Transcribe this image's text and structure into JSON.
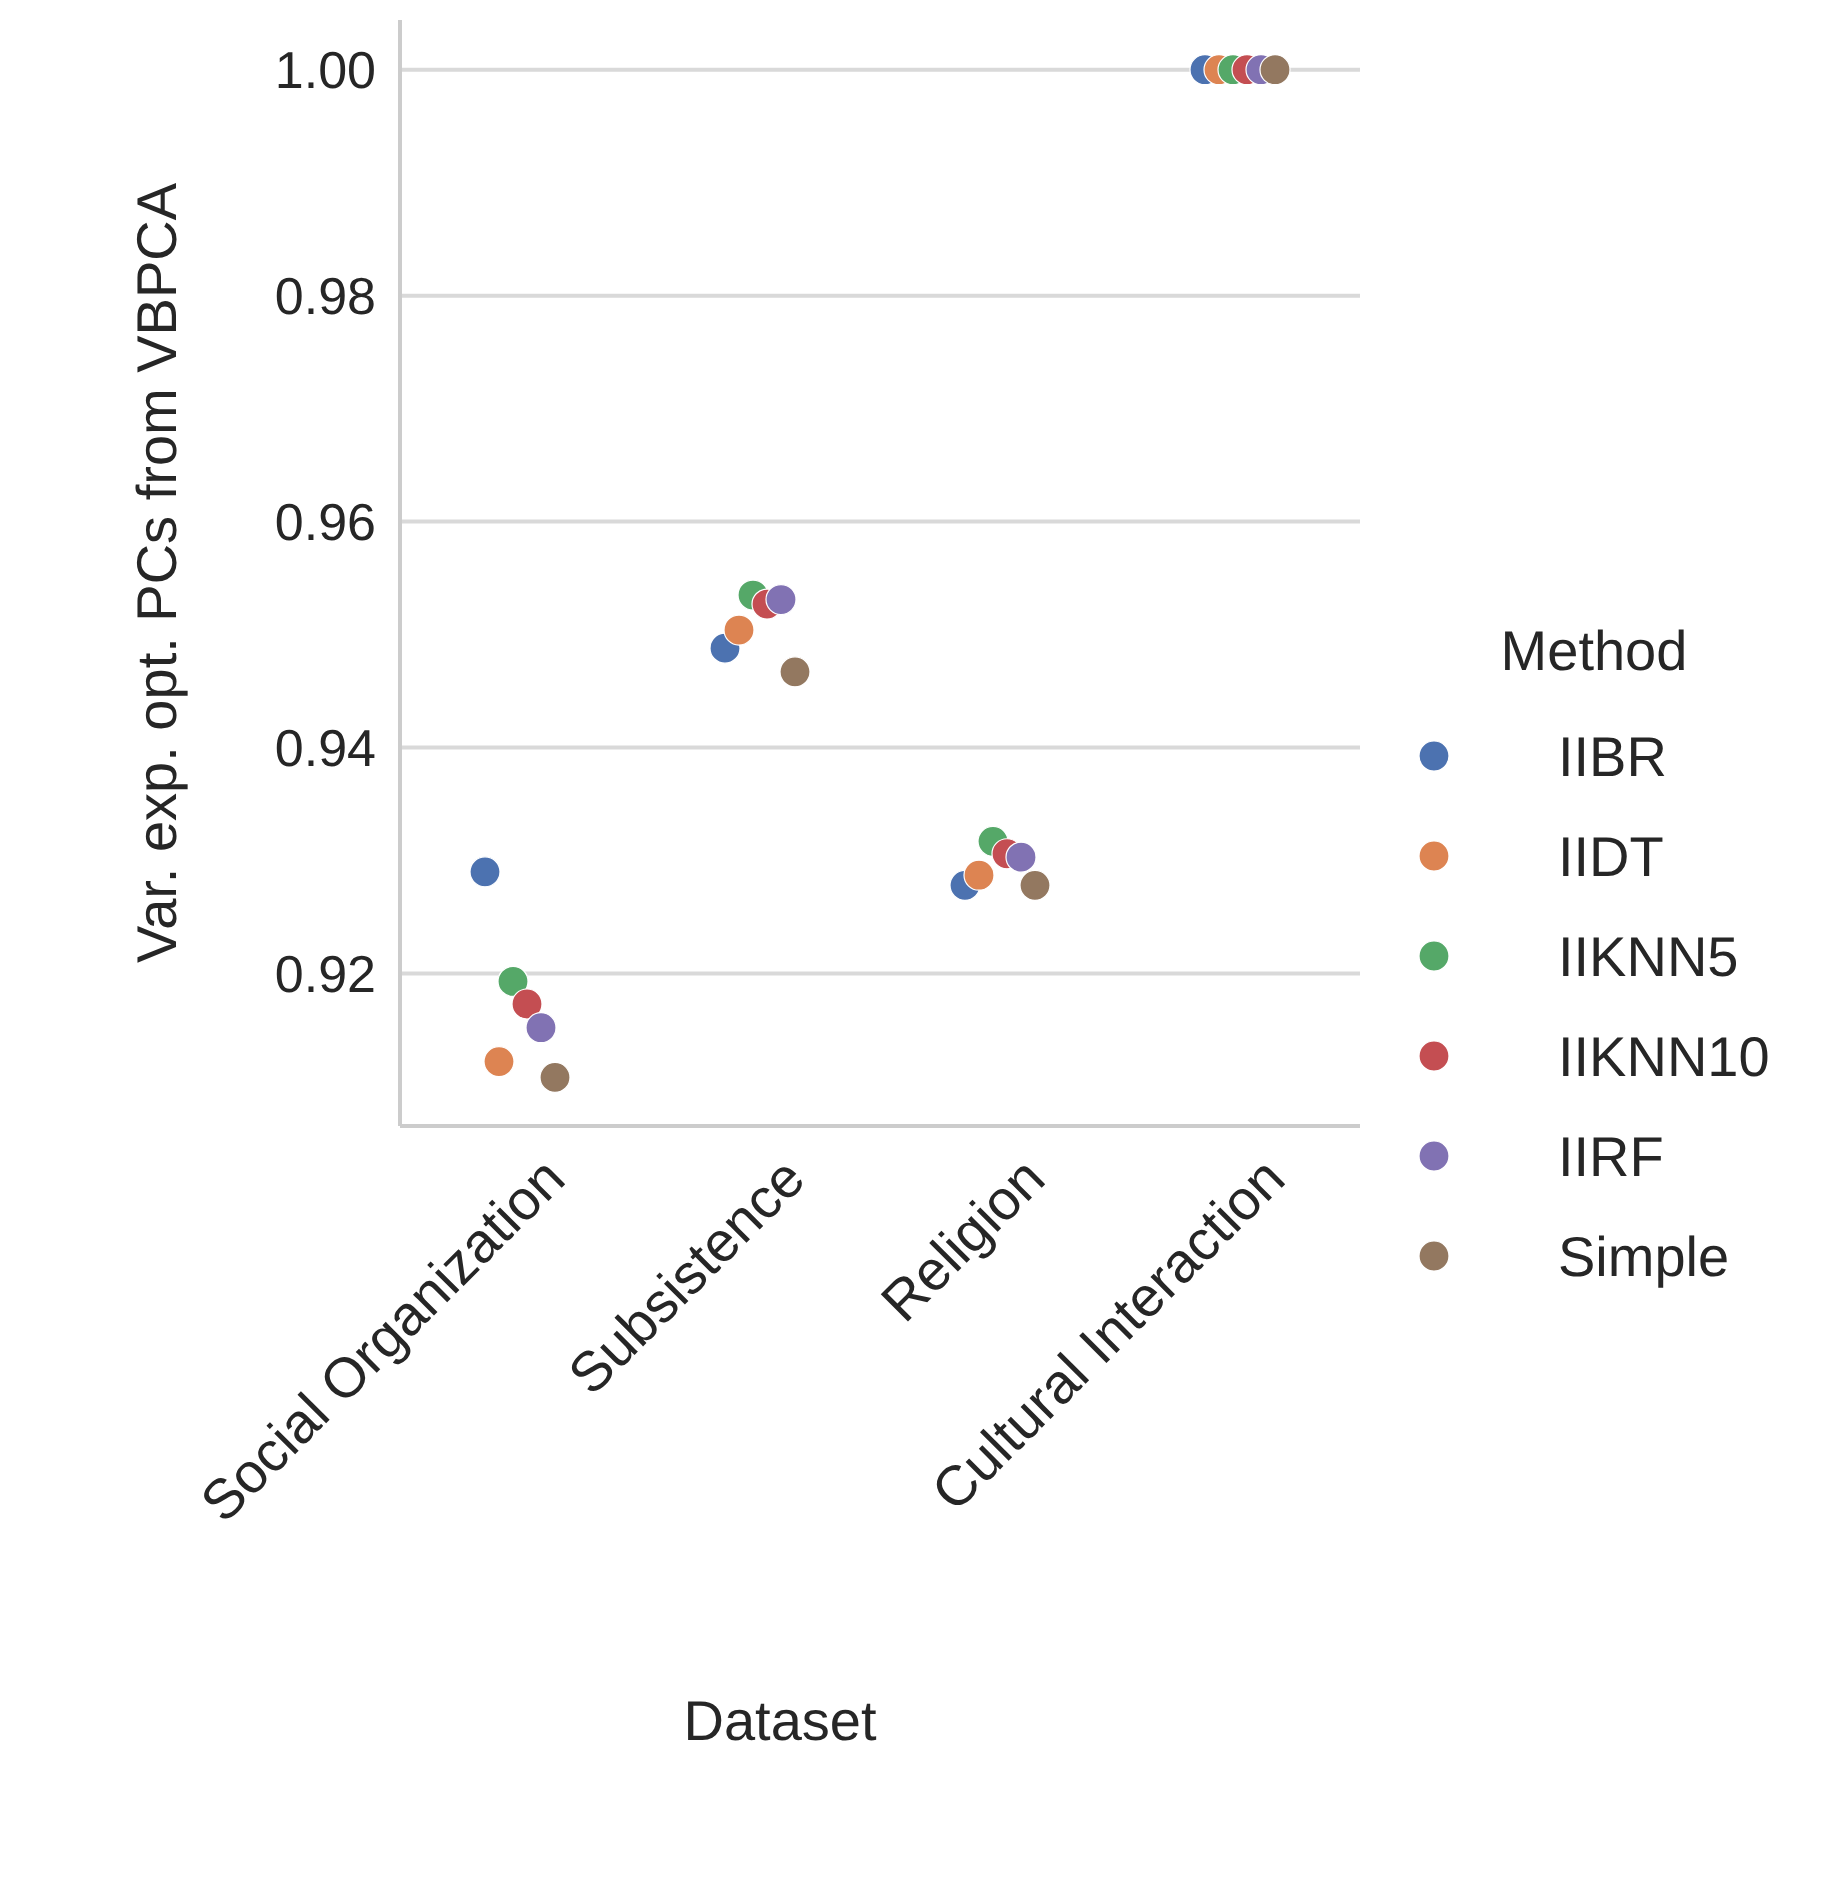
{
  "chart_data": {
    "type": "scatter",
    "xlabel": "Dataset",
    "ylabel": "Var. exp. opt. PCs from VBPCA",
    "legend_title": "Method",
    "categories": [
      "Social Organization",
      "Subsistence",
      "Religion",
      "Cultural Interaction"
    ],
    "series": [
      {
        "name": "IIBR",
        "color": "#4c72b0",
        "values": [
          0.929,
          0.9488,
          0.9278,
          1.0
        ]
      },
      {
        "name": "IIDT",
        "color": "#dd8452",
        "values": [
          0.9122,
          0.9504,
          0.9287,
          1.0
        ]
      },
      {
        "name": "IIKNN5",
        "color": "#55a868",
        "values": [
          0.9193,
          0.9535,
          0.9317,
          1.0
        ]
      },
      {
        "name": "IIKNN10",
        "color": "#c44e52",
        "values": [
          0.9173,
          0.9527,
          0.9306,
          1.0
        ]
      },
      {
        "name": "IIRF",
        "color": "#8172b3",
        "values": [
          0.9152,
          0.9531,
          0.9303,
          1.0
        ]
      },
      {
        "name": "Simple",
        "color": "#937860",
        "values": [
          0.9108,
          0.9467,
          0.9278,
          1.0
        ]
      }
    ],
    "ylim": [
      0.9065,
      1.0044
    ],
    "yticks": [
      {
        "value": 0.92,
        "label": "0.92"
      },
      {
        "value": 0.94,
        "label": "0.94"
      },
      {
        "value": 0.96,
        "label": "0.96"
      },
      {
        "value": 0.98,
        "label": "0.98"
      },
      {
        "value": 1.0,
        "label": "1.00"
      }
    ],
    "grid": "y",
    "legend": "right",
    "marker": "circle"
  }
}
